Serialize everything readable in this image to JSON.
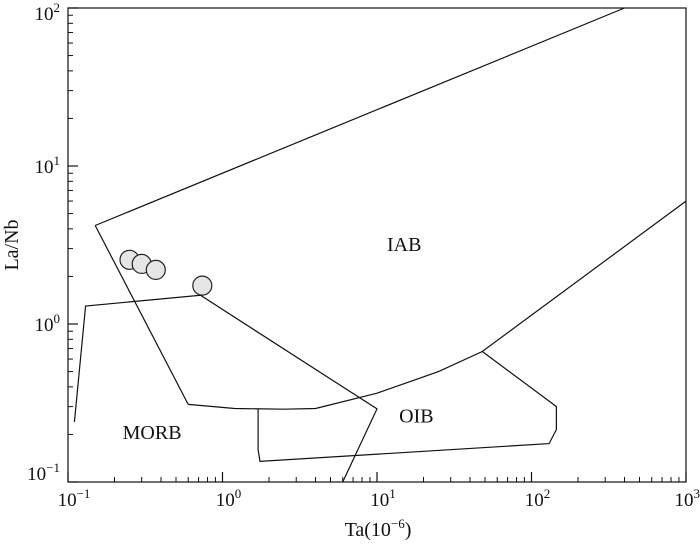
{
  "chart_data": {
    "type": "scatter",
    "title": "",
    "xlabel": "Ta(10",
    "xlabel_exp": "−6",
    "xlabel_close": ")",
    "ylabel": "La/Nb",
    "xscale": "log",
    "yscale": "log",
    "xlim": [
      0.1,
      1000
    ],
    "ylim": [
      0.1,
      100
    ],
    "grid": false,
    "x_ticks": [
      {
        "base": "10",
        "exp": "−1",
        "value": 0.1
      },
      {
        "base": "10",
        "exp": "0",
        "value": 1
      },
      {
        "base": "10",
        "exp": "1",
        "value": 10
      },
      {
        "base": "10",
        "exp": "2",
        "value": 100
      },
      {
        "base": "10",
        "exp": "3",
        "value": 1000
      }
    ],
    "y_ticks": [
      {
        "base": "10",
        "exp": "−1",
        "value": 0.1
      },
      {
        "base": "10",
        "exp": "0",
        "value": 1
      },
      {
        "base": "10",
        "exp": "1",
        "value": 10
      },
      {
        "base": "10",
        "exp": "2",
        "value": 100
      }
    ],
    "points": [
      {
        "x": 0.25,
        "y": 2.55
      },
      {
        "x": 0.3,
        "y": 2.4
      },
      {
        "x": 0.37,
        "y": 2.2
      },
      {
        "x": 0.74,
        "y": 1.75
      }
    ],
    "point_color": "#e6e6e6",
    "region_labels": [
      {
        "text": "IAB",
        "x": 15,
        "y": 3.1
      },
      {
        "text": "MORB",
        "x": 0.35,
        "y": 0.2
      },
      {
        "text": "OIB",
        "x": 18,
        "y": 0.255
      }
    ],
    "boundaries": [
      {
        "name": "iab-upper",
        "x": [
          0.15,
          400
        ],
        "y": [
          4.2,
          100
        ]
      },
      {
        "name": "iab-left",
        "x": [
          0.15,
          0.6
        ],
        "y": [
          4.2,
          0.31
        ]
      },
      {
        "name": "iab-lower-right",
        "x": [
          0.6,
          1.2,
          2.5,
          4,
          10,
          25,
          48,
          1000
        ],
        "y": [
          0.31,
          0.292,
          0.289,
          0.292,
          0.365,
          0.5,
          0.67,
          6
        ]
      },
      {
        "name": "morb-box",
        "x": [
          0.11,
          0.13,
          0.72,
          10,
          6
        ],
        "y": [
          0.24,
          1.3,
          1.52,
          0.29,
          0.1
        ]
      },
      {
        "name": "oib-box",
        "x": [
          48,
          130,
          145,
          145,
          130,
          1.75,
          1.7,
          1.7
        ],
        "y": [
          0.67,
          0.325,
          0.3,
          0.215,
          0.175,
          0.135,
          0.16,
          0.29
        ]
      }
    ]
  }
}
